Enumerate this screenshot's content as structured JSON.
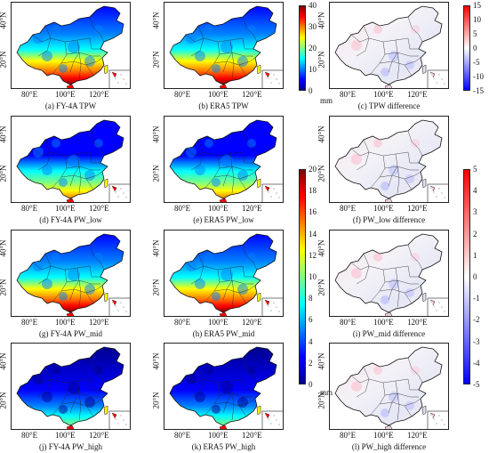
{
  "panels": [
    {
      "id": "a",
      "caption": "(a) FY-4A TPW",
      "kind": "pw",
      "level": "high"
    },
    {
      "id": "b",
      "caption": "(b) ERA5 TPW",
      "kind": "pw",
      "level": "high"
    },
    {
      "id": "c",
      "caption": "(c) TPW difference",
      "kind": "diff"
    },
    {
      "id": "d",
      "caption": "(d) FY-4A PW_low",
      "kind": "pw",
      "level": "mid"
    },
    {
      "id": "e",
      "caption": "(e) ERA5 PW_low",
      "kind": "pw",
      "level": "mid"
    },
    {
      "id": "f",
      "caption": "(f) PW_low difference",
      "kind": "diff"
    },
    {
      "id": "g",
      "caption": "(g) FY-4A PW_mid",
      "kind": "pw",
      "level": "high"
    },
    {
      "id": "h",
      "caption": "(h) ERA5 PW_mid",
      "kind": "pw",
      "level": "high"
    },
    {
      "id": "i",
      "caption": "(i) PW_mid difference",
      "kind": "diff"
    },
    {
      "id": "j",
      "caption": "(j) FY-4A PW_high",
      "kind": "pw",
      "level": "low"
    },
    {
      "id": "k",
      "caption": "(k) ERA5 PW_high",
      "kind": "pw",
      "level": "low"
    },
    {
      "id": "l",
      "caption": "(l) PW_high difference",
      "kind": "diff"
    }
  ],
  "lat_labels": [
    "40°N",
    "20°N"
  ],
  "lon_labels": [
    "80°E",
    "100°E",
    "120°E"
  ],
  "colorbars": {
    "tpw": {
      "ticks": [
        "40",
        "30",
        "20",
        "10",
        "0"
      ],
      "unit": "mm"
    },
    "tpw_diff": {
      "ticks": [
        "15",
        "10",
        "5",
        "0",
        "-5",
        "-10",
        "-15"
      ]
    },
    "pw": {
      "ticks": [
        "20",
        "18",
        "16",
        "14",
        "12",
        "10",
        "8",
        "6",
        "4",
        "2",
        "0"
      ],
      "unit": "mm"
    },
    "pw_diff": {
      "ticks": [
        "5",
        "4",
        "3",
        "2",
        "1",
        "0",
        "-1",
        "-2",
        "-3",
        "-4",
        "-5"
      ]
    }
  },
  "colors": {
    "jet": [
      "#00008f",
      "#0000ff",
      "#0080ff",
      "#00ffff",
      "#80ff80",
      "#ffff00",
      "#ff8000",
      "#ff0000",
      "#800000"
    ],
    "diverging": [
      "#0000ff",
      "#8080ff",
      "#ffffff",
      "#ff8080",
      "#ff0000"
    ]
  }
}
